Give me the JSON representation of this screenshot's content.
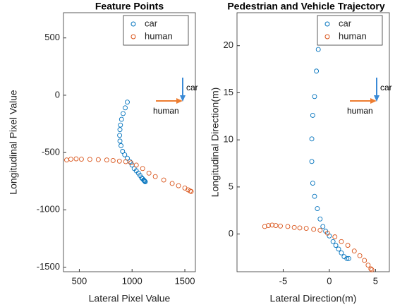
{
  "chart_data": [
    {
      "type": "scatter",
      "title": "Feature Points",
      "x_label": "Lateral Pixel Value",
      "y_label": "Longitudinal Pixel Value",
      "xlim": [
        350,
        1600
      ],
      "xticks": [
        500,
        1000,
        1500
      ],
      "ylim": [
        -1540,
        720
      ],
      "yticks": [
        500,
        0,
        -500,
        -1000,
        -1500
      ],
      "legend": "top-right",
      "annotations": [
        "car",
        "human"
      ],
      "series": [
        {
          "name": "car",
          "color": "#0072BD",
          "x": [
            955,
            935,
            915,
            900,
            890,
            885,
            882,
            885,
            895,
            910,
            930,
            955,
            980,
            1000,
            1020,
            1040,
            1060,
            1075,
            1090,
            1100,
            1110,
            1115,
            1120,
            1125
          ],
          "values": [
            -60,
            -110,
            -160,
            -210,
            -260,
            -300,
            -350,
            -400,
            -440,
            -490,
            -520,
            -550,
            -580,
            -610,
            -640,
            -660,
            -680,
            -700,
            -720,
            -730,
            -740,
            -745,
            -750,
            -755
          ]
        },
        {
          "name": "human",
          "color": "#D95319",
          "x": [
            380,
            420,
            470,
            520,
            600,
            680,
            760,
            820,
            880,
            940,
            990,
            1040,
            1100,
            1160,
            1220,
            1300,
            1380,
            1440,
            1500,
            1530,
            1550,
            1560
          ],
          "values": [
            -565,
            -558,
            -555,
            -558,
            -560,
            -562,
            -565,
            -570,
            -575,
            -580,
            -590,
            -610,
            -640,
            -680,
            -710,
            -740,
            -770,
            -790,
            -810,
            -825,
            -835,
            -840
          ]
        }
      ]
    },
    {
      "type": "scatter",
      "title": "Pedestrian and Vehicle Trajectory",
      "x_label": "Lateral Direction(m)",
      "y_label": "Longitudinal Direction(m)",
      "xlim": [
        -10,
        6.5
      ],
      "xticks": [
        -5,
        0,
        5
      ],
      "ylim": [
        -4,
        23.5
      ],
      "yticks": [
        0,
        5,
        10,
        15,
        20
      ],
      "legend": "top-right",
      "annotations": [
        "car",
        "human"
      ],
      "series": [
        {
          "name": "car",
          "color": "#0072BD",
          "x": [
            -1.0,
            -1.2,
            -1.4,
            -1.6,
            -1.8,
            -1.9,
            -1.9,
            -1.8,
            -1.6,
            -1.3,
            -1.0,
            -0.7,
            -0.4,
            0,
            0.4,
            0.7,
            1.0,
            1.3,
            1.6,
            1.9,
            2.1
          ],
          "values": [
            22.5,
            19.6,
            17.3,
            14.6,
            12.6,
            10.1,
            7.7,
            5.4,
            4.0,
            2.7,
            1.6,
            0.8,
            0.3,
            -0.2,
            -0.8,
            -1.2,
            -1.6,
            -2.0,
            -2.4,
            -2.6,
            -2.6
          ]
        },
        {
          "name": "human",
          "color": "#D95319",
          "x": [
            -7,
            -6.6,
            -6.2,
            -5.8,
            -5.3,
            -4.5,
            -3.8,
            -3.2,
            -2.5,
            -1.7,
            -1.0,
            -0.2,
            0.6,
            1.3,
            2.0,
            2.7,
            3.3,
            3.8,
            4.2,
            4.5,
            4.6
          ],
          "values": [
            0.8,
            0.9,
            0.95,
            0.9,
            0.85,
            0.8,
            0.7,
            0.65,
            0.6,
            0.5,
            0.4,
            0.1,
            -0.3,
            -0.8,
            -1.2,
            -1.8,
            -2.3,
            -2.8,
            -3.3,
            -3.7,
            -3.8
          ]
        }
      ]
    }
  ]
}
